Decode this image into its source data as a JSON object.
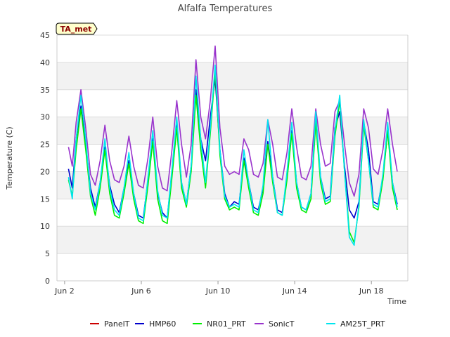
{
  "chart_data": {
    "type": "line",
    "title": "Alfalfa Temperatures",
    "xlabel": "Time",
    "ylabel": "Temperature (C)",
    "badge": "TA_met",
    "xlim": [
      1.6,
      19.9
    ],
    "ylim": [
      0,
      45
    ],
    "yticks": [
      0,
      5,
      10,
      15,
      20,
      25,
      30,
      35,
      40,
      45
    ],
    "xticks": [
      {
        "x": 2,
        "label": "Jun 2"
      },
      {
        "x": 6,
        "label": "Jun 6"
      },
      {
        "x": 10,
        "label": "Jun 10"
      },
      {
        "x": 14,
        "label": "Jun 14"
      },
      {
        "x": 18,
        "label": "Jun 18"
      }
    ],
    "grid": "horizontal alternating bands",
    "legend_position": "bottom",
    "colors": {
      "band": "#f2f2f2",
      "grid": "#dcdcdc",
      "axis": "#cccccc",
      "badge_fill": "#ffffcc"
    },
    "series": [
      {
        "name": "PanelT",
        "color": "#cc0000",
        "visible": false,
        "x": [],
        "values": []
      },
      {
        "name": "HMP60",
        "color": "#0000cc",
        "x": [
          2.2,
          2.4,
          2.6,
          2.85,
          3.1,
          3.35,
          3.6,
          3.85,
          4.1,
          4.35,
          4.6,
          4.85,
          5.1,
          5.35,
          5.6,
          5.85,
          6.1,
          6.35,
          6.6,
          6.85,
          7.1,
          7.35,
          7.6,
          7.85,
          8.1,
          8.35,
          8.6,
          8.85,
          9.1,
          9.35,
          9.6,
          9.85,
          10.1,
          10.35,
          10.6,
          10.85,
          11.1,
          11.35,
          11.6,
          11.85,
          12.1,
          12.35,
          12.6,
          12.85,
          13.1,
          13.35,
          13.6,
          13.85,
          14.1,
          14.35,
          14.6,
          14.85,
          15.1,
          15.35,
          15.6,
          15.85,
          16.1,
          16.35,
          16.6,
          16.85,
          17.1,
          17.35,
          17.6,
          17.85,
          18.1,
          18.35,
          18.6,
          18.85,
          19.1,
          19.35
        ],
        "values": [
          20.5,
          17,
          26,
          32,
          25,
          17,
          13.5,
          18,
          24.5,
          17.5,
          14,
          12.5,
          17,
          22,
          16,
          12,
          11.5,
          18.5,
          26,
          16,
          12.5,
          11.5,
          20,
          28.5,
          18,
          14,
          21,
          35,
          26,
          22,
          30,
          37,
          24,
          16,
          13.5,
          14.5,
          14,
          22.5,
          18,
          13.5,
          13,
          17,
          25.5,
          19,
          13,
          12.5,
          19,
          27.5,
          18,
          13.5,
          13,
          16,
          29.5,
          19,
          15,
          15.5,
          28,
          31,
          21,
          13,
          11.5,
          14.5,
          29,
          24,
          14.5,
          14,
          19,
          27.5,
          18,
          14
        ]
      },
      {
        "name": "NR01_PRT",
        "color": "#00ee00",
        "x": [
          2.2,
          2.4,
          2.6,
          2.85,
          3.1,
          3.35,
          3.6,
          3.85,
          4.1,
          4.35,
          4.6,
          4.85,
          5.1,
          5.35,
          5.6,
          5.85,
          6.1,
          6.35,
          6.6,
          6.85,
          7.1,
          7.35,
          7.6,
          7.85,
          8.1,
          8.35,
          8.6,
          8.85,
          9.1,
          9.35,
          9.6,
          9.85,
          10.1,
          10.35,
          10.6,
          10.85,
          11.1,
          11.35,
          11.6,
          11.85,
          12.1,
          12.35,
          12.6,
          12.85,
          13.1,
          13.35,
          13.6,
          13.85,
          14.1,
          14.35,
          14.6,
          14.85,
          15.1,
          15.35,
          15.6,
          15.85,
          16.1,
          16.35,
          16.6,
          16.85,
          17.1,
          17.35,
          17.6,
          17.85,
          18.1,
          18.35,
          18.6,
          18.85,
          19.1,
          19.35
        ],
        "values": [
          18.5,
          15.5,
          24,
          31.5,
          24,
          15.5,
          12,
          17,
          24,
          16,
          12,
          11.5,
          16,
          21.5,
          15,
          11,
          10.5,
          17.5,
          25.5,
          15,
          11,
          10.5,
          19,
          28,
          17,
          13.5,
          20,
          34,
          24,
          17,
          27,
          38.5,
          23,
          15,
          13,
          13.5,
          13,
          22,
          17,
          12.5,
          12,
          16,
          25,
          18,
          12.5,
          12,
          18.5,
          27,
          17,
          13,
          12.5,
          15,
          29,
          18,
          14,
          14.5,
          26.5,
          33,
          20,
          9,
          7,
          13.5,
          28.5,
          22,
          13.5,
          13,
          18.5,
          27.5,
          17,
          13
        ]
      },
      {
        "name": "SonicT",
        "color": "#9933cc",
        "x": [
          2.2,
          2.4,
          2.6,
          2.85,
          3.1,
          3.35,
          3.6,
          3.85,
          4.1,
          4.35,
          4.6,
          4.85,
          5.1,
          5.35,
          5.6,
          5.85,
          6.1,
          6.35,
          6.6,
          6.85,
          7.1,
          7.35,
          7.6,
          7.85,
          8.1,
          8.35,
          8.6,
          8.85,
          9.1,
          9.35,
          9.6,
          9.85,
          10.1,
          10.35,
          10.6,
          10.85,
          11.1,
          11.35,
          11.6,
          11.85,
          12.1,
          12.35,
          12.6,
          12.85,
          13.1,
          13.35,
          13.6,
          13.85,
          14.1,
          14.35,
          14.6,
          14.85,
          15.1,
          15.35,
          15.6,
          15.85,
          16.1,
          16.35,
          16.6,
          16.85,
          17.1,
          17.35,
          17.6,
          17.85,
          18.1,
          18.35,
          18.6,
          18.85,
          19.1,
          19.35
        ],
        "values": [
          24.5,
          21,
          29,
          35,
          28,
          19.5,
          17.5,
          22,
          28.5,
          22,
          18.5,
          18,
          21,
          26.5,
          21,
          17.5,
          17,
          22.5,
          30,
          21,
          17,
          16.5,
          24,
          33,
          25,
          19,
          25,
          40.5,
          30,
          26,
          33,
          43,
          28,
          21,
          19.5,
          20,
          19.5,
          26,
          24,
          19.5,
          19,
          21.5,
          29.5,
          25,
          19,
          18.5,
          23.5,
          31.5,
          24.5,
          19,
          18.5,
          21,
          31.5,
          25,
          21,
          21.5,
          31,
          33,
          25,
          18,
          15.5,
          19.5,
          31.5,
          28,
          20.5,
          19.5,
          24,
          31.5,
          25,
          20
        ]
      },
      {
        "name": "AM25T_PRT",
        "color": "#00e5ee",
        "x": [
          2.2,
          2.4,
          2.6,
          2.85,
          3.1,
          3.35,
          3.6,
          3.85,
          4.1,
          4.35,
          4.6,
          4.85,
          5.1,
          5.35,
          5.6,
          5.85,
          6.1,
          6.35,
          6.6,
          6.85,
          7.1,
          7.35,
          7.6,
          7.85,
          8.1,
          8.35,
          8.6,
          8.85,
          9.1,
          9.35,
          9.6,
          9.85,
          10.1,
          10.35,
          10.6,
          10.85,
          11.1,
          11.35,
          11.6,
          11.85,
          12.1,
          12.35,
          12.6,
          12.85,
          13.1,
          13.35,
          13.6,
          13.85,
          14.1,
          14.35,
          14.6,
          14.85,
          15.1,
          15.35,
          15.6,
          15.85,
          16.1,
          16.35,
          16.6,
          16.85,
          17.1,
          17.35,
          17.6,
          17.85,
          18.1,
          18.35,
          18.6,
          18.85,
          19.1,
          19.35
        ],
        "values": [
          19,
          15,
          26,
          34,
          26,
          16,
          13,
          18,
          26,
          17,
          13,
          12,
          17,
          23.5,
          16,
          11.5,
          11,
          19,
          27.5,
          16.5,
          12,
          11.5,
          20.5,
          30,
          18,
          14,
          21,
          37.5,
          26,
          18,
          28,
          39.5,
          24,
          15.5,
          13.5,
          14,
          13.5,
          24,
          18,
          13,
          12.5,
          17.5,
          29.5,
          19,
          12.5,
          12,
          20,
          29,
          18,
          13.5,
          13,
          16,
          31,
          19,
          14.5,
          15,
          27.5,
          34,
          20,
          8,
          6.5,
          14,
          29.5,
          22,
          14,
          13.5,
          19.5,
          29,
          18,
          13.5
        ]
      }
    ]
  }
}
